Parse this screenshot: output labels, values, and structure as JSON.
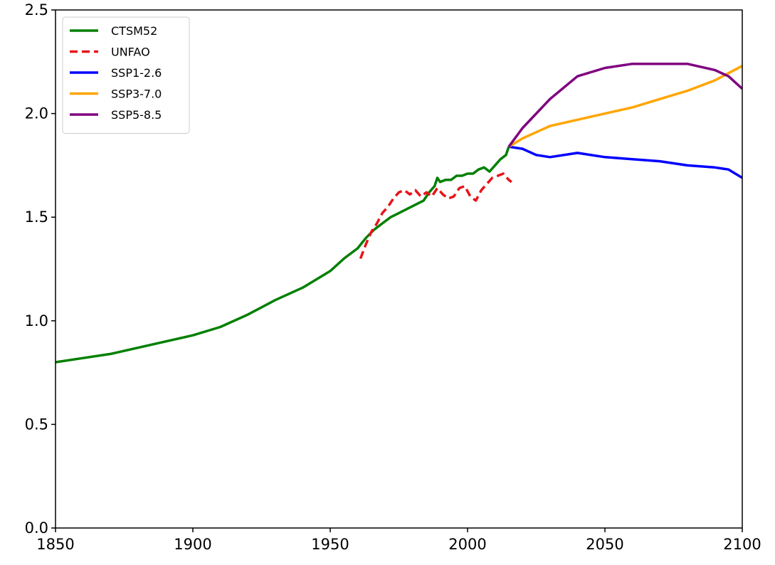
{
  "chart_data": {
    "type": "line",
    "title": "",
    "xlabel": "",
    "ylabel": "",
    "xlim": [
      1850,
      2100
    ],
    "ylim": [
      0.0,
      2.5
    ],
    "xticks": [
      1850,
      1900,
      1950,
      2000,
      2050,
      2100
    ],
    "xtick_labels": [
      "1850",
      "1900",
      "1950",
      "2000",
      "2050",
      "2100"
    ],
    "yticks": [
      0.0,
      0.5,
      1.0,
      1.5,
      2.0,
      2.5
    ],
    "ytick_labels": [
      "0.0",
      "0.5",
      "1.0",
      "1.5",
      "2.0",
      "2.5"
    ],
    "grid": false,
    "legend_position": "top-left",
    "series": [
      {
        "name": "CTSM52",
        "color": "#008000",
        "style": "solid",
        "x": [
          1850,
          1860,
          1870,
          1880,
          1890,
          1900,
          1910,
          1920,
          1930,
          1940,
          1950,
          1955,
          1960,
          1963,
          1966,
          1969,
          1972,
          1975,
          1978,
          1981,
          1984,
          1986,
          1988,
          1989,
          1990,
          1992,
          1994,
          1996,
          1998,
          2000,
          2002,
          2004,
          2006,
          2008,
          2010,
          2012,
          2014,
          2015
        ],
        "y": [
          0.8,
          0.82,
          0.84,
          0.87,
          0.9,
          0.93,
          0.97,
          1.03,
          1.1,
          1.16,
          1.24,
          1.3,
          1.35,
          1.4,
          1.44,
          1.47,
          1.5,
          1.52,
          1.54,
          1.56,
          1.58,
          1.62,
          1.65,
          1.69,
          1.67,
          1.68,
          1.68,
          1.7,
          1.7,
          1.71,
          1.71,
          1.73,
          1.74,
          1.72,
          1.75,
          1.78,
          1.8,
          1.84
        ]
      },
      {
        "name": "UNFAO",
        "color": "#e8141a",
        "style": "dashed",
        "x": [
          1961,
          1963,
          1965,
          1967,
          1969,
          1971,
          1973,
          1975,
          1977,
          1979,
          1981,
          1983,
          1985,
          1987,
          1989,
          1991,
          1993,
          1995,
          1997,
          1999,
          2001,
          2003,
          2005,
          2007,
          2009,
          2011,
          2013,
          2015,
          2016
        ],
        "y": [
          1.3,
          1.37,
          1.43,
          1.47,
          1.52,
          1.55,
          1.59,
          1.62,
          1.63,
          1.61,
          1.63,
          1.6,
          1.62,
          1.6,
          1.64,
          1.61,
          1.59,
          1.6,
          1.64,
          1.65,
          1.6,
          1.58,
          1.63,
          1.66,
          1.69,
          1.7,
          1.71,
          1.68,
          1.67
        ]
      },
      {
        "name": "SSP1-2.6",
        "color": "#0000ff",
        "style": "solid",
        "x": [
          2015,
          2020,
          2025,
          2030,
          2040,
          2050,
          2060,
          2070,
          2080,
          2090,
          2095,
          2100
        ],
        "y": [
          1.84,
          1.83,
          1.8,
          1.79,
          1.81,
          1.79,
          1.78,
          1.77,
          1.75,
          1.74,
          1.73,
          1.69
        ]
      },
      {
        "name": "SSP3-7.0",
        "color": "#ffa500",
        "style": "solid",
        "x": [
          2015,
          2020,
          2030,
          2040,
          2050,
          2060,
          2070,
          2080,
          2090,
          2100
        ],
        "y": [
          1.84,
          1.88,
          1.94,
          1.97,
          2.0,
          2.03,
          2.07,
          2.11,
          2.16,
          2.23
        ]
      },
      {
        "name": "SSP5-8.5",
        "color": "#800080",
        "style": "solid",
        "x": [
          2015,
          2020,
          2030,
          2040,
          2050,
          2060,
          2070,
          2080,
          2090,
          2095,
          2100
        ],
        "y": [
          1.84,
          1.93,
          2.07,
          2.18,
          2.22,
          2.24,
          2.24,
          2.24,
          2.21,
          2.18,
          2.12
        ]
      }
    ]
  }
}
